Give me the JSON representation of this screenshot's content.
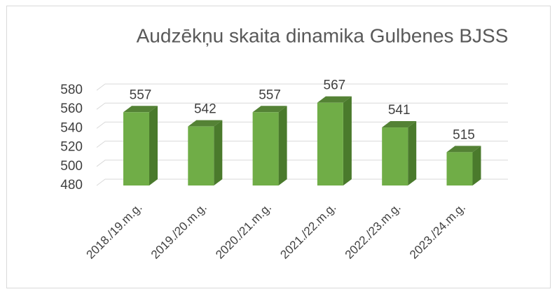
{
  "chart_data": {
    "type": "bar3d",
    "title": "Audzēkņu skaita dinamika Gulbenes BJSS",
    "categories": [
      "2018./19.m.g.",
      "2019./20.m.g.",
      "2020./21.m.g.",
      "2021./22.m.g.",
      "2022./23.m.g.",
      "2023./24.m.g."
    ],
    "values": [
      557,
      542,
      557,
      567,
      541,
      515
    ],
    "color": "#70ad47",
    "ylim": [
      480,
      580
    ],
    "yticks": [
      480,
      500,
      520,
      540,
      560,
      580
    ],
    "grid": true
  }
}
